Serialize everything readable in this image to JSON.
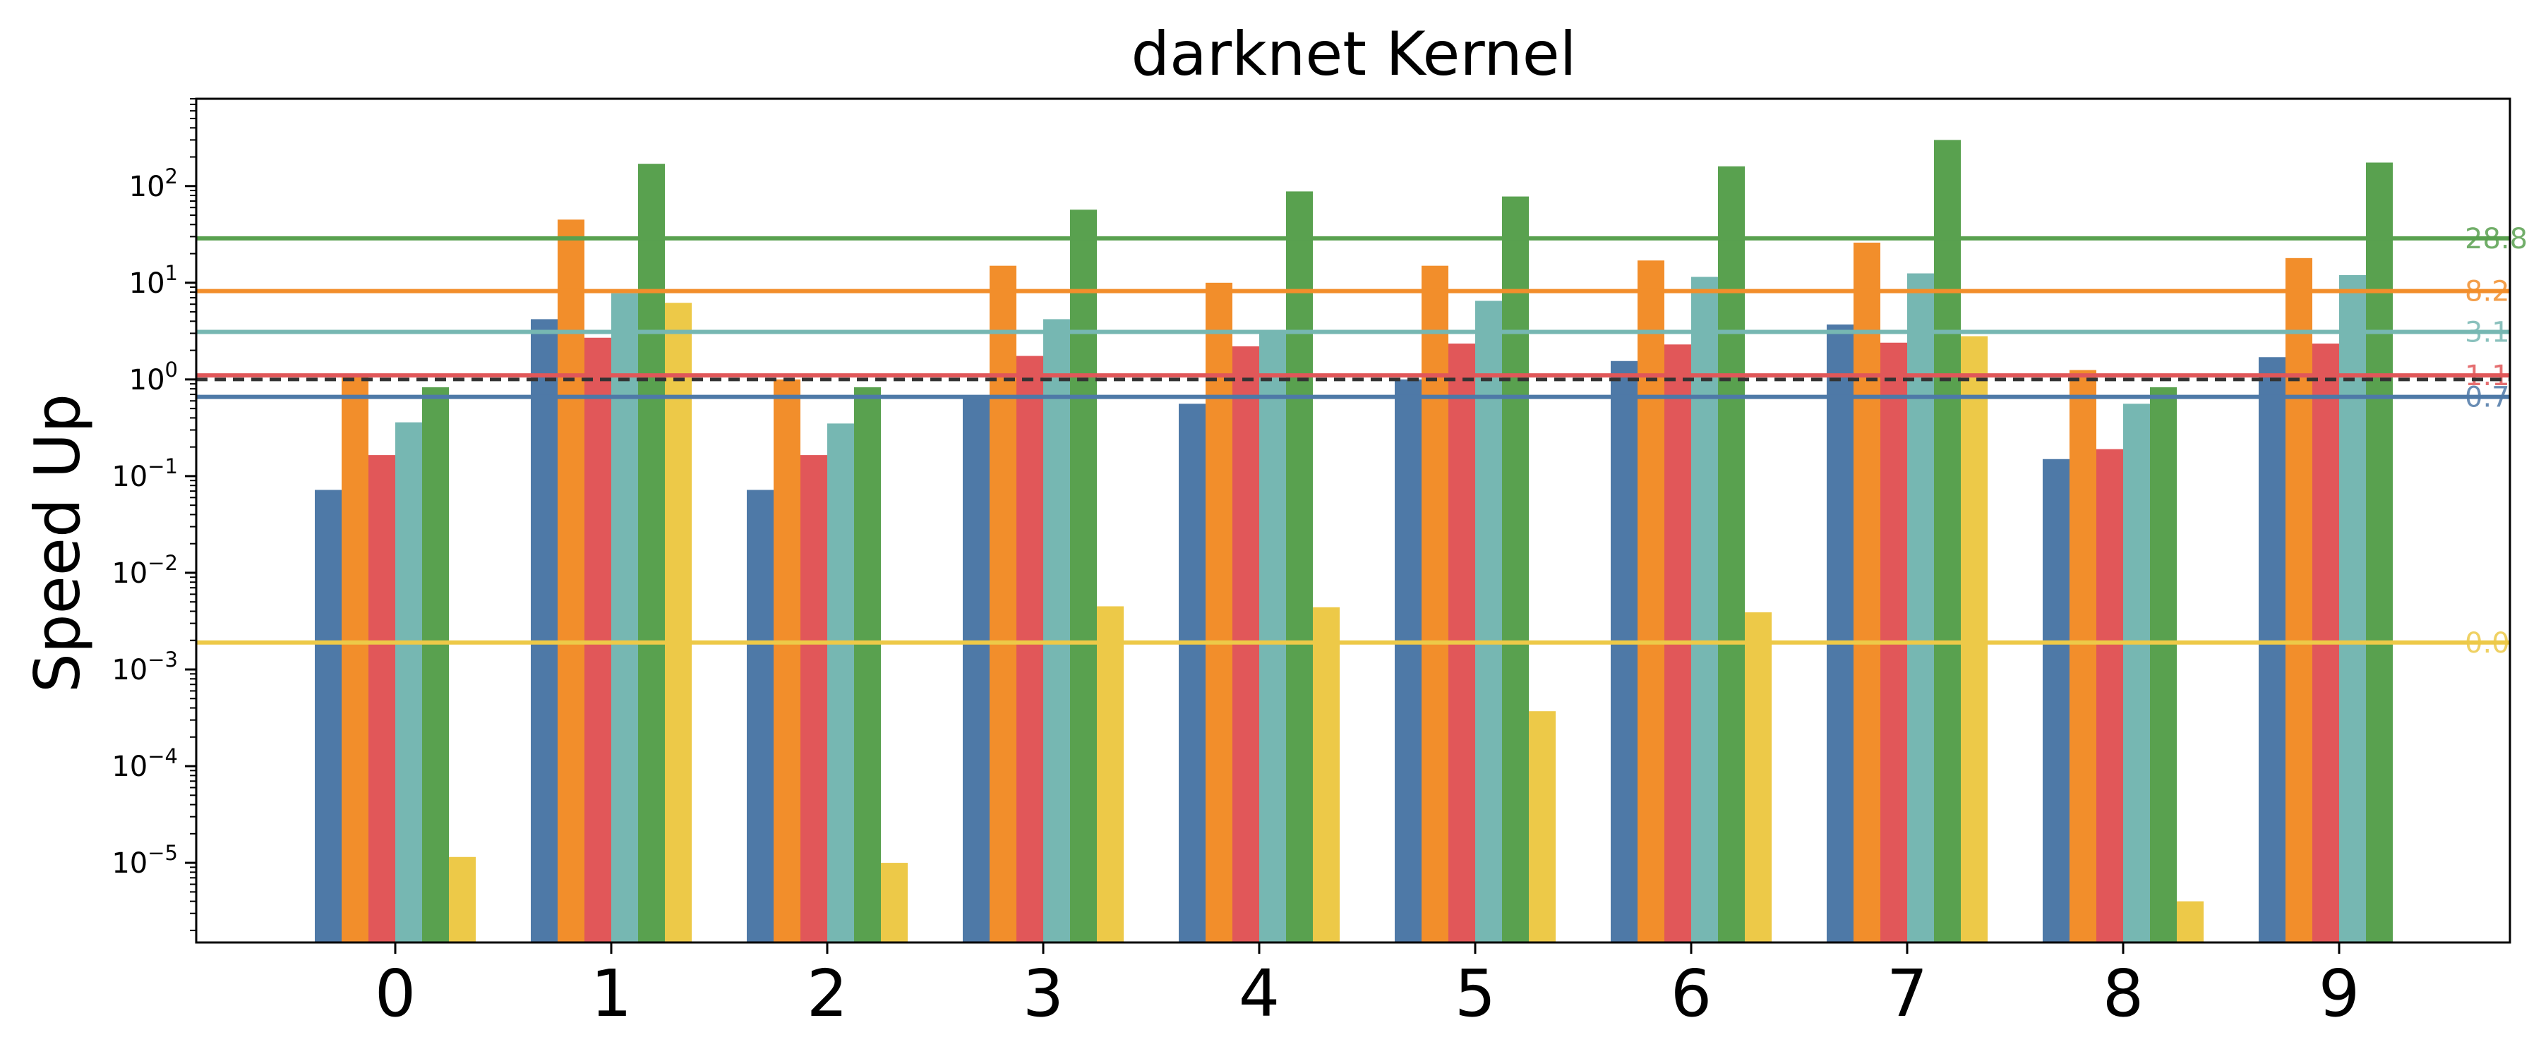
{
  "chart_data": {
    "type": "bar",
    "title": "darknet Kernel",
    "xlabel": "",
    "ylabel": "Speed Up",
    "yscale": "log",
    "ylim": [
      1.5e-06,
      800
    ],
    "grid": false,
    "legend": "none",
    "categories": [
      "0",
      "1",
      "2",
      "3",
      "4",
      "5",
      "6",
      "7",
      "8",
      "9"
    ],
    "y_ticks": [
      {
        "value": 1e-05,
        "mantissa": "10",
        "exp": "−5"
      },
      {
        "value": 0.0001,
        "mantissa": "10",
        "exp": "−4"
      },
      {
        "value": 0.001,
        "mantissa": "10",
        "exp": "−3"
      },
      {
        "value": 0.01,
        "mantissa": "10",
        "exp": "−2"
      },
      {
        "value": 0.1,
        "mantissa": "10",
        "exp": "−1"
      },
      {
        "value": 1,
        "mantissa": "10",
        "exp": "0"
      },
      {
        "value": 10,
        "mantissa": "10",
        "exp": "1"
      },
      {
        "value": 100,
        "mantissa": "10",
        "exp": "2"
      }
    ],
    "series": [
      {
        "color": "#4e79a7",
        "values": [
          0.072,
          4.2,
          0.072,
          0.68,
          0.56,
          1.0,
          1.55,
          3.7,
          0.15,
          1.7
        ]
      },
      {
        "color": "#f28e2b",
        "values": [
          1.05,
          45,
          1.0,
          15,
          10,
          15,
          17,
          26,
          1.25,
          18
        ]
      },
      {
        "color": "#e15759",
        "values": [
          0.165,
          2.7,
          0.165,
          1.75,
          2.2,
          2.35,
          2.3,
          2.4,
          0.19,
          2.35
        ]
      },
      {
        "color": "#76b7b2",
        "values": [
          0.36,
          7.8,
          0.35,
          4.2,
          3.2,
          6.5,
          11.5,
          12.5,
          0.56,
          12
        ]
      },
      {
        "color": "#59a14f",
        "values": [
          0.83,
          170,
          0.83,
          57,
          88,
          78,
          160,
          300,
          0.83,
          175
        ]
      },
      {
        "color": "#edc948",
        "values": [
          1.15e-05,
          6.2,
          1e-05,
          0.0045,
          0.0044,
          0.00037,
          0.0039,
          2.8,
          4e-06,
          null
        ]
      }
    ],
    "reference_lines": [
      {
        "value": 28.8,
        "label": "28.8",
        "color": "#59a14f"
      },
      {
        "value": 8.2,
        "label": "8.2",
        "color": "#f28e2b"
      },
      {
        "value": 3.1,
        "label": "3.1",
        "color": "#76b7b2"
      },
      {
        "value": 1.1,
        "label": "1.1",
        "color": "#e15759"
      },
      {
        "value": 0.66,
        "label": "0.7",
        "color": "#4e79a7"
      },
      {
        "value": 0.0019,
        "label": "0.0",
        "color": "#edc948"
      }
    ],
    "baseline": {
      "value": 1.0,
      "color": "#333333",
      "style": "dashed"
    }
  }
}
